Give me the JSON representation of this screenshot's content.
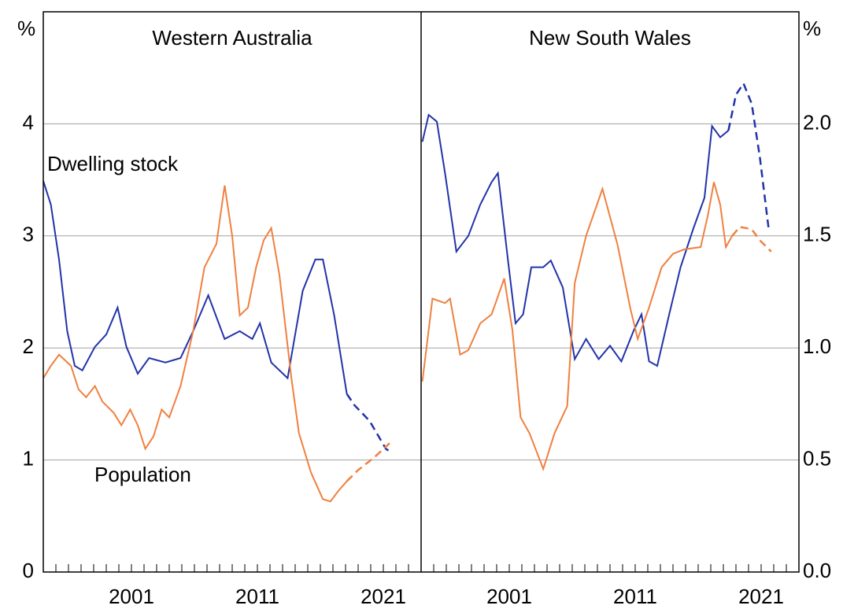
{
  "chart_data": [
    {
      "type": "line",
      "title": "Western Australia",
      "ylabel": "%",
      "grid": true,
      "xlim": [
        1994,
        2024
      ],
      "xticks": [
        2001,
        2011,
        2021
      ],
      "ylim": [
        0,
        5
      ],
      "yticks": [
        0,
        1,
        2,
        3,
        4
      ],
      "annotations": [
        "Dwelling stock",
        "Population"
      ],
      "series": [
        {
          "name": "Dwelling stock",
          "color": "#2233aa",
          "x": [
            1994,
            1994.6,
            1995.25,
            1995.9,
            1996.5,
            1997.1,
            1998.1,
            1999,
            1999.9,
            2000.6,
            2001.5,
            2002.4,
            2003.7,
            2004.9,
            2005.9,
            2007.1,
            2008.4,
            2009.6,
            2010.6,
            2011.2,
            2012.1,
            2013.4,
            2014.6,
            2015.6,
            2016.2,
            2017.1,
            2018.1
          ],
          "values": [
            3.49,
            3.28,
            2.79,
            2.15,
            1.84,
            1.8,
            2.01,
            2.12,
            2.36,
            2.01,
            1.77,
            1.91,
            1.87,
            1.91,
            2.15,
            2.47,
            2.08,
            2.15,
            2.08,
            2.22,
            1.87,
            1.73,
            2.51,
            2.79,
            2.79,
            2.29,
            1.59
          ],
          "forecast_x": [
            2018.7,
            2019.9,
            2021.2,
            2021.6
          ],
          "forecast_values": [
            1.49,
            1.35,
            1.1,
            1.07
          ]
        },
        {
          "name": "Population",
          "color": "#f08040",
          "x": [
            1994,
            1994.6,
            1995.25,
            1996.2,
            1996.8,
            1997.4,
            1998.1,
            1998.7,
            1999.6,
            2000.2,
            2000.9,
            2001.5,
            2002.1,
            2002.75,
            2003.4,
            2004,
            2004.9,
            2005.9,
            2006.8,
            2007.75,
            2008.4,
            2009,
            2009.6,
            2010.25,
            2010.9,
            2011.5,
            2012.1,
            2012.75,
            2013.7,
            2014.3,
            2015.25,
            2016.2,
            2016.8,
            2017.4,
            2018.1
          ],
          "values": [
            1.73,
            1.84,
            1.94,
            1.84,
            1.63,
            1.56,
            1.66,
            1.52,
            1.42,
            1.31,
            1.45,
            1.31,
            1.1,
            1.21,
            1.45,
            1.38,
            1.66,
            2.15,
            2.72,
            2.93,
            3.45,
            3.0,
            2.29,
            2.36,
            2.72,
            2.96,
            3.07,
            2.65,
            1.73,
            1.24,
            0.89,
            0.65,
            0.63,
            0.72,
            0.81
          ],
          "forecast_x": [
            2019,
            2020.25,
            2021.5
          ],
          "forecast_values": [
            0.91,
            1.02,
            1.15
          ]
        }
      ]
    },
    {
      "type": "line",
      "title": "New South Wales",
      "ylabel": "%",
      "grid": true,
      "xlim": [
        1994,
        2024
      ],
      "xticks": [
        2001,
        2011,
        2021
      ],
      "ylim": [
        0,
        2.5
      ],
      "yticks": [
        {
          "value": 0,
          "label": "0.0"
        },
        0.5,
        {
          "value": 1,
          "label": "1.0"
        },
        1.5,
        {
          "value": 2,
          "label": "2.0"
        }
      ],
      "series": [
        {
          "name": "Dwelling stock",
          "color": "#2233aa",
          "x": [
            1994.1,
            1994.6,
            1995.25,
            1995.9,
            1996.8,
            1997.75,
            1998.7,
            1999.6,
            2000.1,
            2000.9,
            2001.5,
            2002.1,
            2002.75,
            2003.7,
            2004.3,
            2005.25,
            2006.2,
            2007.1,
            2008.1,
            2009,
            2009.9,
            2010.9,
            2011.5,
            2012.1,
            2012.75,
            2013.7,
            2014.6,
            2015.6,
            2016.5,
            2017.1,
            2017.75,
            2018.4
          ],
          "values": [
            1.92,
            2.04,
            2.01,
            1.78,
            1.43,
            1.5,
            1.64,
            1.74,
            1.78,
            1.39,
            1.11,
            1.15,
            1.36,
            1.36,
            1.39,
            1.27,
            0.95,
            1.04,
            0.95,
            1.01,
            0.94,
            1.08,
            1.15,
            0.94,
            0.92,
            1.15,
            1.36,
            1.53,
            1.67,
            1.99,
            1.94,
            1.97
          ],
          "forecast_x": [
            2019,
            2019.6,
            2020.25,
            2020.9,
            2021.6
          ],
          "forecast_values": [
            2.13,
            2.18,
            2.09,
            1.85,
            1.53
          ]
        },
        {
          "name": "Population",
          "color": "#f08040",
          "x": [
            1994.1,
            1994.6,
            1994.9,
            1995.9,
            1996.3,
            1997.1,
            1997.75,
            1998.7,
            1999.6,
            2000.6,
            2001.25,
            2001.9,
            2002.6,
            2003.7,
            2004.6,
            2005.6,
            2006.2,
            2007.1,
            2008.4,
            2009.6,
            2010.6,
            2011.2,
            2012.1,
            2013.1,
            2014,
            2014.9,
            2016.2,
            2016.8,
            2017.25,
            2017.75,
            2018.2,
            2018.7
          ],
          "values": [
            0.85,
            1.08,
            1.22,
            1.2,
            1.22,
            0.97,
            0.99,
            1.11,
            1.15,
            1.31,
            1.08,
            0.69,
            0.62,
            0.46,
            0.62,
            0.74,
            1.29,
            1.5,
            1.71,
            1.46,
            1.18,
            1.04,
            1.18,
            1.36,
            1.42,
            1.44,
            1.45,
            1.6,
            1.74,
            1.64,
            1.45,
            1.5
          ],
          "forecast_x": [
            2019.3,
            2020.25,
            2020.9,
            2021.8
          ],
          "forecast_values": [
            1.54,
            1.53,
            1.48,
            1.43
          ]
        }
      ]
    }
  ]
}
